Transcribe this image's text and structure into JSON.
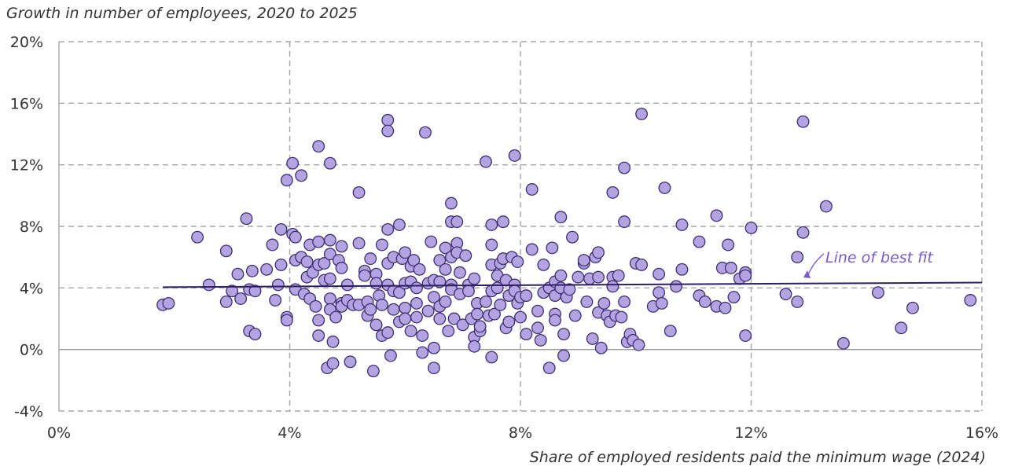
{
  "chart_data": {
    "type": "scatter",
    "ylabel": "Growth in number of employees, 2020 to 2025",
    "xlabel": "Share of employed residents paid the minimum wage (2024)",
    "xlim": [
      0,
      16
    ],
    "ylim": [
      -4,
      20
    ],
    "x_ticks": [
      0,
      4,
      8,
      12,
      16
    ],
    "y_ticks": [
      -4,
      0,
      4,
      8,
      12,
      16,
      20
    ],
    "x_tick_labels": [
      "0%",
      "4%",
      "8%",
      "12%",
      "16%"
    ],
    "y_tick_labels": [
      "-4%",
      "0%",
      "4%",
      "8%",
      "12%",
      "16%",
      "20%"
    ],
    "grid": "dashed",
    "colors": {
      "point_fill": "#b3a3e0",
      "point_stroke": "#3d2f73",
      "fit_line": "#2e1f66",
      "annotation": "#7a5cc9",
      "grid": "#a6a6a6",
      "zero_line": "#999999"
    },
    "best_fit": {
      "label": "Line of best fit",
      "x": [
        1.8,
        16
      ],
      "y": [
        4.05,
        4.35
      ]
    },
    "points": [
      [
        1.8,
        2.9
      ],
      [
        1.9,
        3.0
      ],
      [
        2.4,
        7.3
      ],
      [
        2.6,
        4.2
      ],
      [
        2.9,
        6.4
      ],
      [
        2.9,
        3.1
      ],
      [
        3.0,
        3.8
      ],
      [
        3.1,
        4.9
      ],
      [
        3.15,
        3.3
      ],
      [
        3.25,
        8.5
      ],
      [
        3.3,
        1.2
      ],
      [
        3.3,
        3.9
      ],
      [
        3.35,
        5.1
      ],
      [
        3.4,
        3.8
      ],
      [
        3.4,
        1.0
      ],
      [
        3.6,
        5.2
      ],
      [
        3.7,
        6.8
      ],
      [
        3.75,
        3.2
      ],
      [
        3.8,
        4.2
      ],
      [
        3.85,
        7.8
      ],
      [
        3.85,
        5.5
      ],
      [
        3.95,
        11.0
      ],
      [
        3.95,
        2.1
      ],
      [
        3.95,
        1.9
      ],
      [
        4.05,
        12.1
      ],
      [
        4.05,
        7.5
      ],
      [
        4.1,
        5.8
      ],
      [
        4.1,
        3.9
      ],
      [
        4.1,
        7.3
      ],
      [
        4.2,
        11.3
      ],
      [
        4.2,
        6.0
      ],
      [
        4.25,
        3.6
      ],
      [
        4.3,
        5.7
      ],
      [
        4.3,
        4.7
      ],
      [
        4.35,
        6.8
      ],
      [
        4.35,
        3.3
      ],
      [
        4.4,
        5.0
      ],
      [
        4.45,
        2.8
      ],
      [
        4.5,
        13.2
      ],
      [
        4.5,
        7.0
      ],
      [
        4.5,
        5.5
      ],
      [
        4.5,
        1.9
      ],
      [
        4.5,
        0.9
      ],
      [
        4.6,
        4.5
      ],
      [
        4.6,
        5.6
      ],
      [
        4.65,
        -1.2
      ],
      [
        4.7,
        7.1
      ],
      [
        4.7,
        12.1
      ],
      [
        4.7,
        6.2
      ],
      [
        4.7,
        4.6
      ],
      [
        4.7,
        3.3
      ],
      [
        4.7,
        2.6
      ],
      [
        4.75,
        0.5
      ],
      [
        4.75,
        -0.9
      ],
      [
        4.8,
        2.1
      ],
      [
        4.85,
        5.8
      ],
      [
        4.9,
        6.7
      ],
      [
        4.9,
        5.3
      ],
      [
        4.9,
        3.0
      ],
      [
        4.9,
        2.8
      ],
      [
        5.0,
        4.2
      ],
      [
        5.0,
        3.2
      ],
      [
        5.05,
        -0.8
      ],
      [
        5.1,
        2.9
      ],
      [
        5.2,
        10.2
      ],
      [
        5.2,
        6.9
      ],
      [
        5.2,
        2.9
      ],
      [
        5.3,
        5.1
      ],
      [
        5.3,
        4.8
      ],
      [
        5.35,
        3.1
      ],
      [
        5.35,
        2.2
      ],
      [
        5.4,
        5.9
      ],
      [
        5.4,
        2.6
      ],
      [
        5.45,
        -1.4
      ],
      [
        5.5,
        4.9
      ],
      [
        5.5,
        4.3
      ],
      [
        5.5,
        1.6
      ],
      [
        5.55,
        3.5
      ],
      [
        5.6,
        6.8
      ],
      [
        5.6,
        2.9
      ],
      [
        5.6,
        0.9
      ],
      [
        5.7,
        14.9
      ],
      [
        5.7,
        14.2
      ],
      [
        5.7,
        7.8
      ],
      [
        5.7,
        5.6
      ],
      [
        5.7,
        4.2
      ],
      [
        5.7,
        1.1
      ],
      [
        5.75,
        -0.4
      ],
      [
        5.8,
        6.0
      ],
      [
        5.8,
        3.8
      ],
      [
        5.8,
        2.6
      ],
      [
        5.9,
        8.1
      ],
      [
        5.9,
        3.7
      ],
      [
        5.9,
        1.8
      ],
      [
        5.95,
        5.9
      ],
      [
        6.0,
        6.3
      ],
      [
        6.0,
        4.3
      ],
      [
        6.0,
        2.7
      ],
      [
        6.0,
        2.0
      ],
      [
        6.1,
        5.4
      ],
      [
        6.1,
        4.4
      ],
      [
        6.1,
        1.2
      ],
      [
        6.15,
        5.8
      ],
      [
        6.2,
        4.0
      ],
      [
        6.2,
        3.0
      ],
      [
        6.2,
        2.1
      ],
      [
        6.25,
        5.2
      ],
      [
        6.3,
        0.9
      ],
      [
        6.3,
        -0.2
      ],
      [
        6.35,
        14.1
      ],
      [
        6.4,
        4.3
      ],
      [
        6.4,
        2.5
      ],
      [
        6.45,
        7.0
      ],
      [
        6.5,
        4.5
      ],
      [
        6.5,
        3.4
      ],
      [
        6.5,
        0.1
      ],
      [
        6.5,
        -1.2
      ],
      [
        6.6,
        5.8
      ],
      [
        6.6,
        4.4
      ],
      [
        6.6,
        2.8
      ],
      [
        6.6,
        2.0
      ],
      [
        6.7,
        6.6
      ],
      [
        6.7,
        5.2
      ],
      [
        6.7,
        3.1
      ],
      [
        6.75,
        1.2
      ],
      [
        6.8,
        9.5
      ],
      [
        6.8,
        8.3
      ],
      [
        6.8,
        6.0
      ],
      [
        6.8,
        4.2
      ],
      [
        6.8,
        3.9
      ],
      [
        6.85,
        2.0
      ],
      [
        6.9,
        8.3
      ],
      [
        6.9,
        6.9
      ],
      [
        6.9,
        6.3
      ],
      [
        6.95,
        5.0
      ],
      [
        6.95,
        3.6
      ],
      [
        7.0,
        1.6
      ],
      [
        7.05,
        6.1
      ],
      [
        7.1,
        4.2
      ],
      [
        7.1,
        3.8
      ],
      [
        7.15,
        2.0
      ],
      [
        7.2,
        4.6
      ],
      [
        7.2,
        0.8
      ],
      [
        7.2,
        0.2
      ],
      [
        7.25,
        3.0
      ],
      [
        7.25,
        2.3
      ],
      [
        7.3,
        1.2
      ],
      [
        7.3,
        1.5
      ],
      [
        7.4,
        12.2
      ],
      [
        7.4,
        3.1
      ],
      [
        7.45,
        2.2
      ],
      [
        7.5,
        8.1
      ],
      [
        7.5,
        6.8
      ],
      [
        7.5,
        5.5
      ],
      [
        7.5,
        3.8
      ],
      [
        7.5,
        -0.5
      ],
      [
        7.55,
        2.3
      ],
      [
        7.6,
        4.8
      ],
      [
        7.6,
        4.0
      ],
      [
        7.65,
        5.6
      ],
      [
        7.65,
        2.9
      ],
      [
        7.7,
        8.3
      ],
      [
        7.7,
        5.9
      ],
      [
        7.75,
        4.5
      ],
      [
        7.75,
        1.4
      ],
      [
        7.8,
        3.5
      ],
      [
        7.8,
        1.8
      ],
      [
        7.85,
        6.0
      ],
      [
        7.9,
        12.6
      ],
      [
        7.9,
        4.2
      ],
      [
        7.9,
        3.8
      ],
      [
        7.95,
        5.7
      ],
      [
        7.95,
        3.0
      ],
      [
        8.0,
        3.4
      ],
      [
        8.0,
        2.1
      ],
      [
        8.1,
        3.5
      ],
      [
        8.1,
        1.0
      ],
      [
        8.2,
        10.4
      ],
      [
        8.2,
        6.5
      ],
      [
        8.3,
        2.5
      ],
      [
        8.3,
        1.4
      ],
      [
        8.35,
        0.6
      ],
      [
        8.4,
        5.5
      ],
      [
        8.4,
        3.7
      ],
      [
        8.5,
        4.0
      ],
      [
        8.5,
        -1.2
      ],
      [
        8.55,
        6.6
      ],
      [
        8.6,
        4.4
      ],
      [
        8.6,
        3.5
      ],
      [
        8.6,
        2.3
      ],
      [
        8.6,
        1.9
      ],
      [
        8.7,
        8.6
      ],
      [
        8.7,
        4.8
      ],
      [
        8.7,
        4.0
      ],
      [
        8.75,
        1.0
      ],
      [
        8.75,
        -0.4
      ],
      [
        8.8,
        3.4
      ],
      [
        8.85,
        3.9
      ],
      [
        8.9,
        7.3
      ],
      [
        8.95,
        2.2
      ],
      [
        9.0,
        4.7
      ],
      [
        9.1,
        5.6
      ],
      [
        9.1,
        5.8
      ],
      [
        9.15,
        3.1
      ],
      [
        9.2,
        4.6
      ],
      [
        9.25,
        0.7
      ],
      [
        9.3,
        6.0
      ],
      [
        9.35,
        6.3
      ],
      [
        9.35,
        4.7
      ],
      [
        9.35,
        2.4
      ],
      [
        9.4,
        0.1
      ],
      [
        9.45,
        3.0
      ],
      [
        9.5,
        2.2
      ],
      [
        9.55,
        1.8
      ],
      [
        9.6,
        10.2
      ],
      [
        9.6,
        4.7
      ],
      [
        9.6,
        4.1
      ],
      [
        9.65,
        2.2
      ],
      [
        9.7,
        4.8
      ],
      [
        9.75,
        2.1
      ],
      [
        9.8,
        11.8
      ],
      [
        9.8,
        8.3
      ],
      [
        9.8,
        3.1
      ],
      [
        9.85,
        0.5
      ],
      [
        9.9,
        1.0
      ],
      [
        9.95,
        0.6
      ],
      [
        10.0,
        5.6
      ],
      [
        10.05,
        0.3
      ],
      [
        10.1,
        15.3
      ],
      [
        10.1,
        5.5
      ],
      [
        10.3,
        2.8
      ],
      [
        10.4,
        4.9
      ],
      [
        10.4,
        3.7
      ],
      [
        10.45,
        3.0
      ],
      [
        10.5,
        10.5
      ],
      [
        10.6,
        1.2
      ],
      [
        10.7,
        4.1
      ],
      [
        10.8,
        8.1
      ],
      [
        10.8,
        5.2
      ],
      [
        11.1,
        7.0
      ],
      [
        11.1,
        3.5
      ],
      [
        11.2,
        3.1
      ],
      [
        11.4,
        8.7
      ],
      [
        11.4,
        2.8
      ],
      [
        11.5,
        5.3
      ],
      [
        11.55,
        2.7
      ],
      [
        11.6,
        6.8
      ],
      [
        11.65,
        5.3
      ],
      [
        11.7,
        3.4
      ],
      [
        11.8,
        4.6
      ],
      [
        11.9,
        5.0
      ],
      [
        11.9,
        4.8
      ],
      [
        11.9,
        0.9
      ],
      [
        12.0,
        7.9
      ],
      [
        12.6,
        3.6
      ],
      [
        12.8,
        6.0
      ],
      [
        12.8,
        3.1
      ],
      [
        12.9,
        14.8
      ],
      [
        12.9,
        7.6
      ],
      [
        13.3,
        9.3
      ],
      [
        13.6,
        0.4
      ],
      [
        14.2,
        3.7
      ],
      [
        14.6,
        1.4
      ],
      [
        14.8,
        2.7
      ],
      [
        15.8,
        3.2
      ]
    ]
  }
}
